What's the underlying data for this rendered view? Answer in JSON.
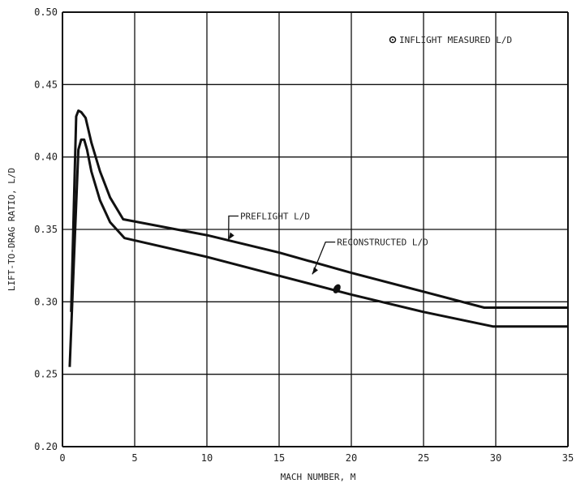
{
  "chart_data": {
    "type": "line",
    "title": "",
    "xlabel": "MACH NUMBER, M",
    "ylabel": "LIFT-TO-DRAG RATIO, L/D",
    "xlim": [
      0,
      35
    ],
    "ylim": [
      0.2,
      0.5
    ],
    "grid": true,
    "xticks": [
      "0",
      "5",
      "10",
      "15",
      "20",
      "25",
      "30",
      "35"
    ],
    "yticks": [
      "0.20",
      "0.25",
      "0.30",
      "0.35",
      "0.40",
      "0.45",
      "0.50"
    ],
    "series": [
      {
        "name": "PREFLIGHT L/D",
        "x": [
          0.6,
          0.8,
          0.95,
          1.1,
          1.3,
          1.6,
          2.0,
          2.6,
          3.3,
          4.2,
          10,
          15,
          20,
          25,
          29.2,
          35
        ],
        "y": [
          0.293,
          0.37,
          0.428,
          0.432,
          0.431,
          0.427,
          0.41,
          0.39,
          0.372,
          0.357,
          0.346,
          0.334,
          0.32,
          0.307,
          0.296,
          0.296
        ]
      },
      {
        "name": "RECONSTRUCTED L/D",
        "x": [
          0.5,
          0.8,
          1.1,
          1.3,
          1.5,
          1.7,
          2.0,
          2.6,
          3.3,
          4.3,
          10,
          15,
          20,
          25,
          29.8,
          35
        ],
        "y": [
          0.255,
          0.33,
          0.405,
          0.412,
          0.412,
          0.405,
          0.39,
          0.37,
          0.355,
          0.344,
          0.331,
          0.318,
          0.305,
          0.293,
          0.283,
          0.283
        ]
      }
    ],
    "points": [
      {
        "name": "INFLIGHT MEASURED L/D",
        "x": 19.0,
        "y": 0.309
      }
    ],
    "annotations": [
      {
        "text": "PREFLIGHT L/D",
        "x": 12.3,
        "y": 0.357,
        "target_x": 11.5,
        "target_y": 0.343
      },
      {
        "text": "RECONSTRUCTED L/D",
        "x": 19.0,
        "y": 0.339,
        "target_x": 17.3,
        "target_y": 0.319
      }
    ],
    "legend": {
      "label": "INFLIGHT MEASURED L/D",
      "placement": "top-right"
    }
  }
}
